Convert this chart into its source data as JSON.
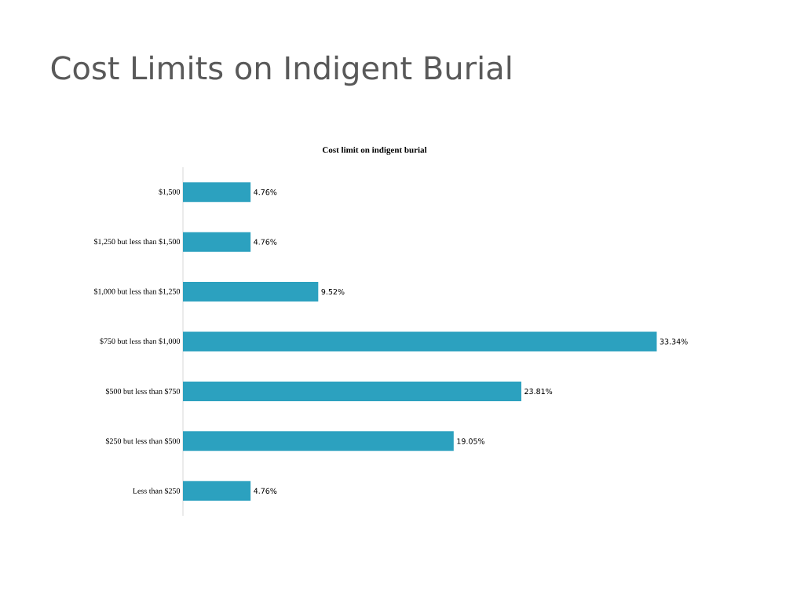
{
  "chart_data": {
    "type": "bar",
    "orientation": "horizontal",
    "title": "Cost Limits on Indigent Burial",
    "subtitle": "Cost limit on indigent burial",
    "categories": [
      "$1,500",
      "$1,250 but less than $1,500",
      "$1,000 but less than $1,250",
      "$750 but less than $1,000",
      "$500 but less than $750",
      "$250 but less than $500",
      "Less than $250"
    ],
    "values": [
      4.76,
      4.76,
      9.52,
      33.34,
      23.81,
      19.05,
      4.76
    ],
    "value_labels": [
      "4.76%",
      "4.76%",
      "9.52%",
      "33.34%",
      "23.81%",
      "19.05%",
      "4.76%"
    ],
    "color": "#2ca1bf"
  }
}
